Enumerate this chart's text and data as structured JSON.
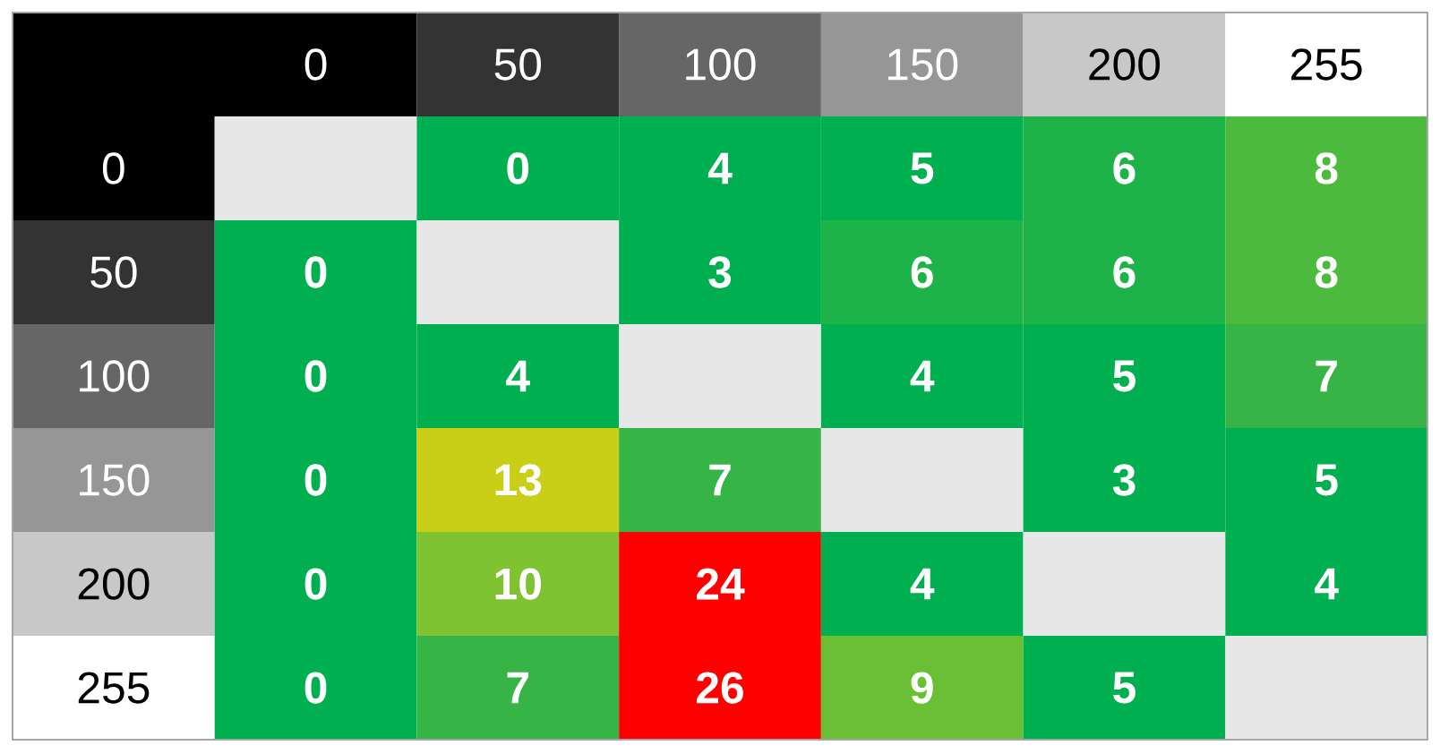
{
  "chart_data": {
    "type": "heatmap",
    "categories": [
      "0",
      "50",
      "100",
      "150",
      "200",
      "255"
    ],
    "y_categories": [
      "0",
      "50",
      "100",
      "150",
      "200",
      "255"
    ],
    "cells": [
      [
        null,
        0,
        4,
        5,
        6,
        8
      ],
      [
        0,
        null,
        3,
        6,
        6,
        8
      ],
      [
        0,
        4,
        null,
        4,
        5,
        7
      ],
      [
        0,
        13,
        7,
        null,
        3,
        5
      ],
      [
        0,
        10,
        24,
        4,
        null,
        4
      ],
      [
        0,
        7,
        26,
        9,
        5,
        null
      ]
    ],
    "colors": [
      [
        null,
        "#00b050",
        "#00b050",
        "#00b050",
        "#1db348",
        "#4cba3c"
      ],
      [
        "#00b050",
        null,
        "#00b050",
        "#1db348",
        "#1db348",
        "#4cba3c"
      ],
      [
        "#00b050",
        "#00b050",
        null,
        "#00b050",
        "#00b050",
        "#36b546"
      ],
      [
        "#00b050",
        "#c9cf17",
        "#36b546",
        null,
        "#00b050",
        "#00b050"
      ],
      [
        "#00b050",
        "#80c332",
        "#ff0000",
        "#00b050",
        null,
        "#00b050"
      ],
      [
        "#00b050",
        "#36b546",
        "#ff0000",
        "#6abf35",
        "#00b050",
        null
      ]
    ],
    "data_labels": true
  }
}
